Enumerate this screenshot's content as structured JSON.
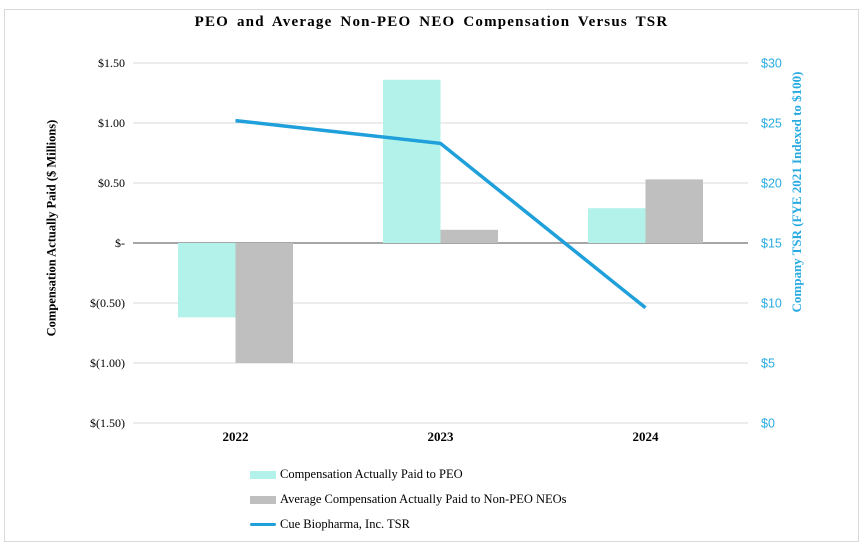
{
  "chart_data": {
    "type": "bar+line",
    "title": "PEO and Average Non-PEO NEO Compensation Versus TSR",
    "categories": [
      "2022",
      "2023",
      "2024"
    ],
    "series": [
      {
        "name": "Compensation Actually Paid to PEO",
        "type": "bar",
        "axis": "left",
        "color": "#b2f2ea",
        "values": [
          -0.62,
          1.36,
          0.29
        ]
      },
      {
        "name": "Average Compensation Actually Paid to Non-PEO NEOs",
        "type": "bar",
        "axis": "left",
        "color": "#bfbfbf",
        "values": [
          -1.0,
          0.11,
          0.53
        ]
      },
      {
        "name": "Cue Biopharma, Inc. TSR",
        "type": "line",
        "axis": "right",
        "color": "#1fa0da",
        "values": [
          25.2,
          23.3,
          9.6
        ]
      }
    ],
    "left_axis": {
      "title": "Compensation Actually Paid ($ Millions)",
      "ticks": [
        "$1.50",
        "$1.00",
        "$0.50",
        "$-",
        "$(0.50)",
        "$(1.00)",
        "$(1.50)"
      ],
      "max": 1.5,
      "min": -1.5,
      "zero_label": "$-"
    },
    "right_axis": {
      "title": "Company TSR (FYE 2021 Indexed to $100)",
      "ticks": [
        "$30",
        "$25",
        "$20",
        "$15",
        "$10",
        "$5",
        "$0"
      ],
      "max": 30,
      "min": 0,
      "color": "#29abe2"
    },
    "grid": true,
    "gridline_color": "#d9d9d9",
    "zero_line_color": "#a6a6a6",
    "legend_position": "bottom-left"
  }
}
